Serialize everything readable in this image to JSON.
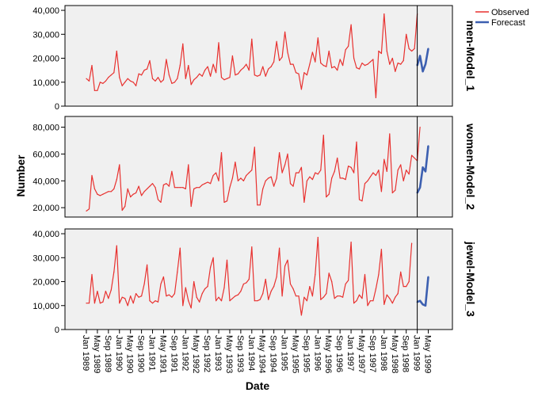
{
  "chart_data": {
    "type": "line",
    "xlabel": "Date",
    "ylabel": "Number",
    "x_tick_labels": [
      "Jan 1989",
      "May 1989",
      "Sep 1989",
      "Jan 1990",
      "May 1990",
      "Sep 1990",
      "Jan 1991",
      "May 1991",
      "Sep 1991",
      "Jan 1992",
      "May 1992",
      "Sep 1992",
      "Jan 1993",
      "May 1993",
      "Sep 1993",
      "Jan 1994",
      "May 1994",
      "Sep 1994",
      "Jan 1995",
      "May 1995",
      "Sep 1995",
      "Jan 1996",
      "May 1996",
      "Sep 1996",
      "Jan 1997",
      "May 1997",
      "Sep 1997",
      "Jan 1998",
      "May 1998",
      "Sep 1998",
      "Jan 1999",
      "May 1999"
    ],
    "legend": [
      {
        "name": "Observed",
        "color": "#e8312f"
      },
      {
        "name": "Forecast",
        "color": "#3c5fb0"
      }
    ],
    "legend_position": "top-right",
    "forecast_start": "Jan 1999",
    "panels": [
      {
        "label": "men-Model_1",
        "ylim": [
          0,
          42000
        ],
        "yticks": [
          "0",
          "10,000",
          "20,000",
          "30,000",
          "40,000"
        ],
        "ytick_values": [
          0,
          10000,
          20000,
          30000,
          40000
        ],
        "observed": [
          11500,
          10500,
          17000,
          6500,
          6500,
          10000,
          9500,
          10500,
          12000,
          13000,
          14000,
          23000,
          12000,
          8500,
          10000,
          11500,
          10500,
          10000,
          8500,
          13500,
          13000,
          15000,
          15500,
          19000,
          11500,
          10500,
          12000,
          10000,
          11000,
          19500,
          13000,
          9500,
          10000,
          11500,
          17000,
          26000,
          11500,
          17000,
          9000,
          11000,
          12000,
          13500,
          12500,
          15000,
          16500,
          12500,
          17500,
          14000,
          26500,
          12000,
          11000,
          11500,
          12000,
          21000,
          13000,
          13500,
          15000,
          16000,
          17500,
          15000,
          28000,
          13000,
          12500,
          13000,
          16500,
          12500,
          15500,
          16500,
          18500,
          27000,
          19000,
          20500,
          31000,
          22500,
          17500,
          17500,
          14000,
          13500,
          7000,
          14000,
          13000,
          17500,
          22500,
          18500,
          28500,
          18000,
          17000,
          16500,
          23000,
          16000,
          16500,
          15000,
          19500,
          17000,
          23500,
          25000,
          34000,
          20000,
          16000,
          15500,
          18000,
          17000,
          17500,
          18500,
          19500,
          3500,
          23000,
          22000,
          38500,
          23000,
          17500,
          20000,
          14500,
          18000,
          17500,
          19000,
          30000,
          24000,
          23000,
          24000,
          38500
        ],
        "forecast": [
          17000,
          21000,
          14500,
          17500,
          24000
        ]
      },
      {
        "label": "women-Model_2",
        "ylim": [
          13000,
          88000
        ],
        "yticks": [
          "20,000",
          "40,000",
          "60,000",
          "80,000"
        ],
        "ytick_values": [
          20000,
          40000,
          60000,
          80000
        ],
        "observed": [
          17500,
          19000,
          44000,
          34000,
          30000,
          29000,
          30000,
          31000,
          32000,
          32000,
          34000,
          41000,
          52000,
          18000,
          21000,
          34000,
          28000,
          30000,
          31000,
          36000,
          29000,
          32000,
          34000,
          36000,
          38000,
          35000,
          26000,
          24000,
          37000,
          38000,
          36000,
          47000,
          35000,
          35000,
          35000,
          35000,
          34000,
          52000,
          21000,
          34000,
          35000,
          35000,
          37000,
          38000,
          39000,
          38000,
          44000,
          46000,
          40000,
          61000,
          24000,
          25000,
          35000,
          42000,
          54000,
          40000,
          42000,
          40000,
          44000,
          46000,
          48000,
          65000,
          22000,
          22000,
          34000,
          40000,
          42000,
          43000,
          36000,
          42000,
          61000,
          46000,
          52000,
          60000,
          38000,
          36000,
          46000,
          46000,
          50000,
          24000,
          40000,
          43000,
          41000,
          46000,
          45000,
          48000,
          74000,
          28000,
          30000,
          42000,
          47000,
          57000,
          42000,
          42000,
          41000,
          51000,
          50000,
          46000,
          69000,
          26000,
          25000,
          38000,
          40000,
          43000,
          46000,
          44000,
          48000,
          32000,
          56000,
          47000,
          75000,
          31000,
          33000,
          48000,
          52000,
          40000,
          48000,
          45000,
          59000,
          57000,
          55000,
          80000
        ],
        "forecast": [
          31000,
          35000,
          50000,
          47000,
          66000
        ]
      },
      {
        "label": "jewel-Model_3",
        "ylim": [
          0,
          42000
        ],
        "yticks": [
          "0",
          "10,000",
          "20,000",
          "30,000",
          "40,000"
        ],
        "ytick_values": [
          0,
          10000,
          20000,
          30000,
          40000
        ],
        "observed": [
          11000,
          11000,
          23000,
          11000,
          16000,
          11000,
          11500,
          16000,
          13000,
          16500,
          24000,
          35000,
          11000,
          13500,
          13000,
          10000,
          14000,
          11000,
          15000,
          13500,
          14000,
          19000,
          27000,
          12000,
          11000,
          12000,
          11500,
          19000,
          22000,
          14000,
          14500,
          13500,
          15000,
          24000,
          34000,
          10000,
          17500,
          12000,
          9000,
          20000,
          13500,
          11500,
          15000,
          17000,
          18000,
          26000,
          30000,
          12000,
          13500,
          12000,
          17500,
          29000,
          12000,
          13000,
          14000,
          14500,
          16000,
          19000,
          19500,
          21000,
          34500,
          12000,
          12000,
          12500,
          15000,
          21000,
          12500,
          16000,
          18000,
          22000,
          34000,
          14000,
          26500,
          29000,
          19000,
          17000,
          14000,
          14000,
          6000,
          13500,
          12000,
          18000,
          14000,
          23000,
          38500,
          12500,
          13500,
          15000,
          23500,
          20000,
          13000,
          14000,
          14000,
          13500,
          19000,
          20500,
          36500,
          11000,
          12000,
          14500,
          13000,
          23000,
          10000,
          12000,
          12000,
          17000,
          23000,
          33500,
          10500,
          14500,
          13000,
          11000,
          13500,
          15000,
          24000,
          18000,
          18000,
          20000,
          36000
        ],
        "forecast": [
          11500,
          12000,
          10500,
          10000,
          22000
        ]
      }
    ]
  }
}
